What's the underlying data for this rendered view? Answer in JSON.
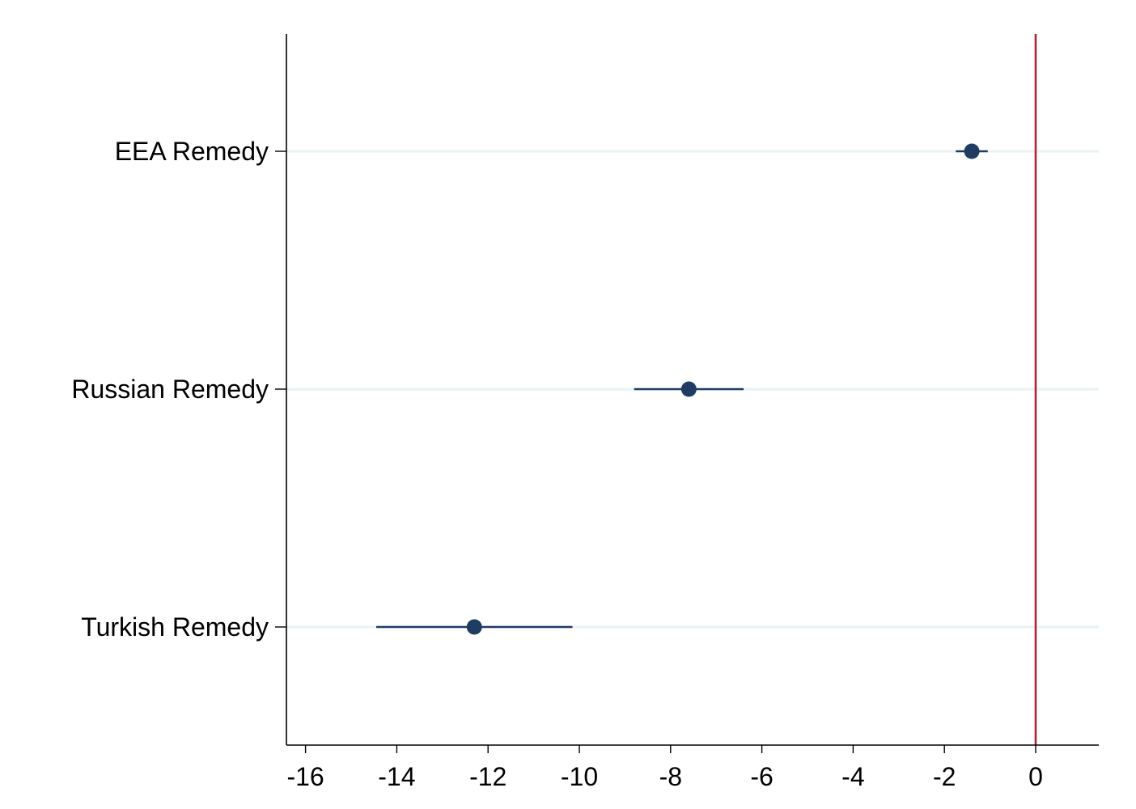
{
  "chart_data": {
    "type": "scatter",
    "title": "",
    "xlabel": "",
    "ylabel": "",
    "xlim": [
      -16.2,
      1.4
    ],
    "x_ticks": [
      -16,
      -14,
      -12,
      -10,
      -8,
      -6,
      -4,
      -2,
      0
    ],
    "x_tick_labels": [
      "-16",
      "-14",
      "-12",
      "-10",
      "-8",
      "-6",
      "-4",
      "-2",
      "0"
    ],
    "categories": [
      "EEA Remedy",
      "Russian Remedy",
      "Turkish Remedy"
    ],
    "series": [
      {
        "estimates": [
          -1.4,
          -7.6,
          -12.3
        ],
        "ci_low": [
          -1.75,
          -8.8,
          -14.45
        ],
        "ci_high": [
          -1.05,
          -6.4,
          -10.15
        ]
      }
    ],
    "reference_line": {
      "x": 0,
      "color": "#b22234"
    },
    "grid": true,
    "legend": "none",
    "colors": {
      "marker": "#1f3d63",
      "ci": "#1f3d63",
      "grid": "#eaf2f3",
      "axis": "#000000",
      "reference": "#b22234"
    }
  }
}
